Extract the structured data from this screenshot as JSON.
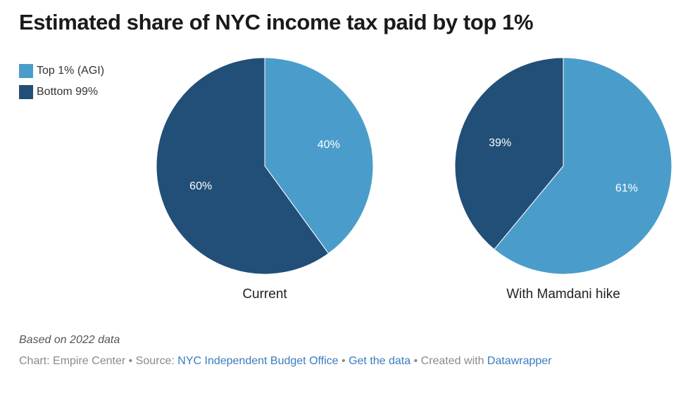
{
  "title": "Estimated share of NYC income tax paid by top 1%",
  "legend": [
    {
      "label": "Top 1% (AGI)",
      "color": "#4a9dcb"
    },
    {
      "label": "Bottom 99%",
      "color": "#224f77"
    }
  ],
  "chart_data": [
    {
      "type": "pie",
      "title": "Current",
      "slices": [
        {
          "name": "Top 1% (AGI)",
          "value": 40,
          "label": "40%",
          "color": "#4a9dcb"
        },
        {
          "name": "Bottom 99%",
          "value": 60,
          "label": "60%",
          "color": "#224f77"
        }
      ]
    },
    {
      "type": "pie",
      "title": "With Mamdani hike",
      "slices": [
        {
          "name": "Top 1% (AGI)",
          "value": 61,
          "label": "61%",
          "color": "#4a9dcb"
        },
        {
          "name": "Bottom 99%",
          "value": 39,
          "label": "39%",
          "color": "#224f77"
        }
      ]
    }
  ],
  "notes": "Based on 2022 data",
  "footer": {
    "chart_prefix": "Chart: Empire Center",
    "sep1": " • ",
    "source_prefix": "Source: ",
    "source_link": "NYC Independent Budget Office",
    "sep2": " • ",
    "get_data": "Get the data",
    "sep3": " • ",
    "created_prefix": "Created with ",
    "datawrapper": "Datawrapper"
  }
}
